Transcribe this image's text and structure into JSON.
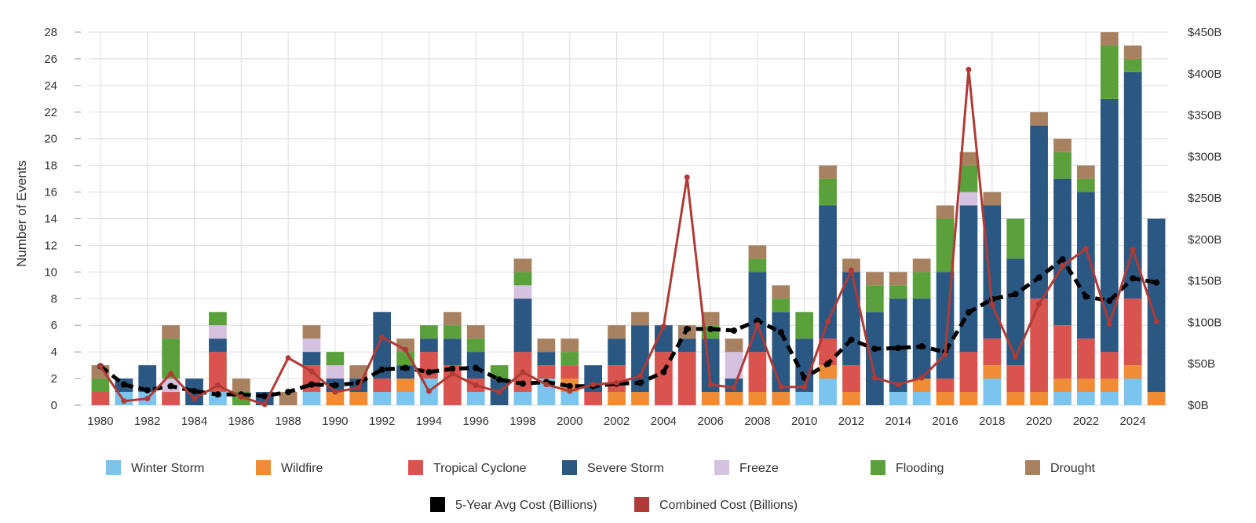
{
  "chart_data": {
    "type": "bar",
    "stacked": true,
    "ylabel": "Number of Events",
    "y_ticks": [
      "0",
      "2",
      "4",
      "6",
      "8",
      "10",
      "12",
      "14",
      "16",
      "18",
      "20",
      "22",
      "24",
      "26",
      "28"
    ],
    "ylim": [
      0,
      28
    ],
    "y2_ticks": [
      "$0B",
      "$50B",
      "$100B",
      "$150B",
      "$200B",
      "$250B",
      "$300B",
      "$350B",
      "$400B",
      "$450B"
    ],
    "y2lim": [
      0,
      450
    ],
    "x_tick_labels": [
      "1980",
      "1982",
      "1984",
      "1986",
      "1988",
      "1990",
      "1992",
      "1994",
      "1996",
      "1998",
      "2000",
      "2002",
      "2004",
      "2006",
      "2008",
      "2010",
      "2012",
      "2014",
      "2016",
      "2018",
      "2020",
      "2022",
      "2024"
    ],
    "grid": true,
    "legend_position": "bottom",
    "years": [
      1980,
      1981,
      1982,
      1983,
      1984,
      1985,
      1986,
      1987,
      1988,
      1989,
      1990,
      1991,
      1992,
      1993,
      1994,
      1995,
      1996,
      1997,
      1998,
      1999,
      2000,
      2001,
      2002,
      2003,
      2004,
      2005,
      2006,
      2007,
      2008,
      2009,
      2010,
      2011,
      2012,
      2013,
      2014,
      2015,
      2016,
      2017,
      2018,
      2019,
      2020,
      2021,
      2022,
      2023,
      2024,
      2025
    ],
    "series": [
      {
        "name": "Winter Storm",
        "color": "#7ac4ee",
        "values": [
          0,
          1,
          1,
          0,
          0,
          1,
          0,
          0,
          0,
          1,
          0,
          0,
          1,
          1,
          2,
          0,
          1,
          0,
          1,
          2,
          1,
          0,
          0,
          0,
          0,
          0,
          0,
          0,
          0,
          0,
          1,
          2,
          0,
          0,
          1,
          1,
          0,
          0,
          2,
          0,
          0,
          1,
          1,
          1,
          2,
          0
        ]
      },
      {
        "name": "Wildfire",
        "color": "#ef8c35",
        "values": [
          0,
          0,
          0,
          0,
          0,
          0,
          0,
          0,
          0,
          0,
          1,
          1,
          0,
          1,
          0,
          0,
          0,
          0,
          0,
          0,
          1,
          0,
          1,
          1,
          0,
          0,
          1,
          1,
          1,
          1,
          0,
          1,
          1,
          0,
          0,
          1,
          1,
          1,
          1,
          1,
          1,
          1,
          1,
          1,
          1,
          1
        ]
      },
      {
        "name": "Tropical Cyclone",
        "color": "#d9534f",
        "values": [
          1,
          0,
          0,
          1,
          0,
          3,
          0,
          0,
          0,
          2,
          0,
          0,
          1,
          0,
          2,
          3,
          1,
          0,
          3,
          1,
          1,
          1,
          2,
          0,
          4,
          4,
          0,
          0,
          3,
          0,
          0,
          2,
          2,
          0,
          0,
          0,
          1,
          3,
          2,
          2,
          7,
          4,
          3,
          2,
          5,
          0
        ]
      },
      {
        "name": "Severe Storm",
        "color": "#2b5783",
        "values": [
          0,
          1,
          2,
          0,
          2,
          1,
          0,
          1,
          0,
          1,
          1,
          1,
          5,
          1,
          1,
          2,
          2,
          2,
          4,
          1,
          0,
          2,
          2,
          5,
          2,
          1,
          4,
          1,
          6,
          6,
          4,
          10,
          7,
          7,
          7,
          6,
          8,
          11,
          10,
          8,
          13,
          11,
          11,
          19,
          17,
          13
        ]
      },
      {
        "name": "Freeze",
        "color": "#d5c1e0",
        "values": [
          0,
          0,
          0,
          1,
          0,
          1,
          0,
          0,
          0,
          1,
          1,
          0,
          0,
          0,
          0,
          0,
          0,
          0,
          1,
          0,
          0,
          0,
          0,
          0,
          0,
          0,
          0,
          2,
          0,
          0,
          0,
          0,
          0,
          0,
          0,
          0,
          0,
          1,
          0,
          0,
          0,
          0,
          0,
          0,
          0,
          0
        ]
      },
      {
        "name": "Flooding",
        "color": "#5aa13c",
        "values": [
          1,
          0,
          0,
          3,
          0,
          1,
          1,
          0,
          0,
          0,
          1,
          0,
          0,
          1,
          1,
          1,
          1,
          1,
          1,
          0,
          1,
          0,
          0,
          0,
          0,
          0,
          1,
          0,
          1,
          1,
          2,
          2,
          0,
          2,
          1,
          2,
          4,
          2,
          0,
          3,
          0,
          2,
          1,
          4,
          1,
          0
        ]
      },
      {
        "name": "Drought",
        "color": "#a88160",
        "values": [
          1,
          0,
          0,
          1,
          0,
          0,
          1,
          0,
          1,
          1,
          0,
          1,
          0,
          1,
          0,
          1,
          1,
          0,
          1,
          1,
          1,
          0,
          1,
          1,
          0,
          1,
          1,
          1,
          1,
          1,
          0,
          1,
          1,
          1,
          1,
          1,
          1,
          1,
          1,
          0,
          1,
          1,
          1,
          1,
          1,
          0
        ]
      }
    ],
    "lines": [
      {
        "name": "5-Year Avg Cost (Billions)",
        "color": "#000000",
        "dashed": true,
        "values": [
          47,
          25,
          18,
          23,
          17,
          13,
          13,
          11,
          16,
          25,
          24,
          27,
          43,
          45,
          40,
          44,
          45,
          31,
          26,
          28,
          23,
          23,
          26,
          27,
          40,
          92,
          92,
          90,
          102,
          88,
          33,
          50,
          79,
          68,
          69,
          71,
          64,
          112,
          128,
          134,
          154,
          176,
          131,
          126,
          153,
          148
        ]
      },
      {
        "name": "Combined Cost (Billions)",
        "color": "#b03a35",
        "dashed": false,
        "values": [
          47,
          5,
          8,
          38,
          8,
          24,
          10,
          1,
          57,
          41,
          16,
          21,
          82,
          67,
          17,
          38,
          24,
          16,
          40,
          25,
          17,
          25,
          27,
          35,
          95,
          275,
          25,
          21,
          97,
          22,
          22,
          101,
          163,
          33,
          25,
          33,
          61,
          405,
          121,
          58,
          122,
          168,
          189,
          98,
          188,
          101
        ]
      }
    ],
    "legend": {
      "row1": [
        "Winter Storm",
        "Wildfire",
        "Tropical Cyclone",
        "Severe Storm",
        "Freeze",
        "Flooding",
        "Drought"
      ],
      "row2": [
        "5-Year Avg Cost (Billions)",
        "Combined Cost (Billions)"
      ]
    }
  }
}
